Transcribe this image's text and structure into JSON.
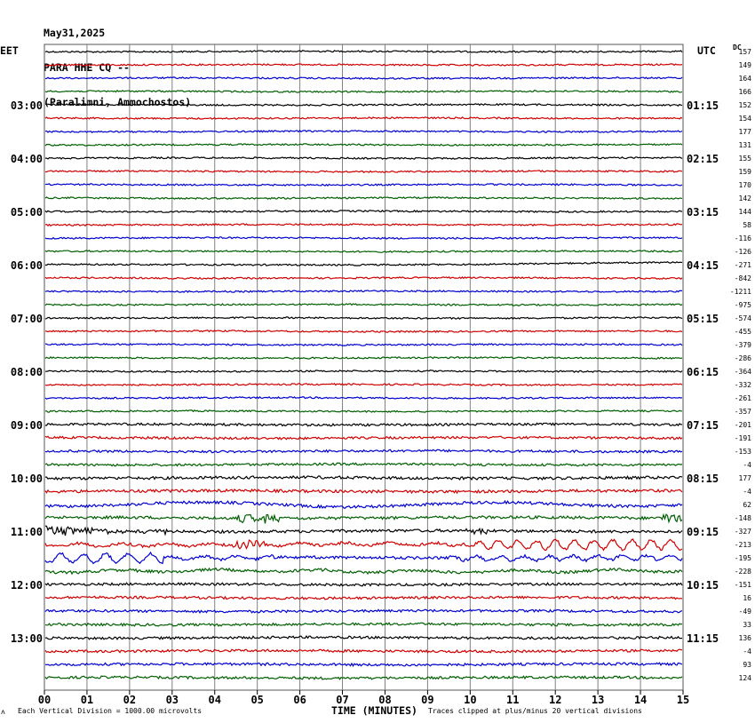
{
  "header": {
    "date": "May31,2025",
    "station": "PARA HHE CQ --",
    "location": "(Paralimni, Ammochostos)"
  },
  "left_tz": "EET",
  "right_tz": "UTC",
  "dc_label": "DC",
  "footer": {
    "scale_note": "Each Vertical Division = 1000.00 microvolts",
    "xlabel": "TIME (MINUTES)",
    "clip_note": "Traces clipped at plus/minus 20 vertical divisions",
    "corner_mark": "ʌ"
  },
  "chart_data": {
    "type": "line",
    "x_range_minutes": [
      0,
      15
    ],
    "x_ticks": [
      "00",
      "01",
      "02",
      "03",
      "04",
      "05",
      "06",
      "07",
      "08",
      "09",
      "10",
      "11",
      "12",
      "13",
      "14",
      "15"
    ],
    "grid": "vertical lines every minute",
    "trace_colors": [
      "#000000",
      "#d00000",
      "#0000d0",
      "#006000"
    ],
    "left_time_labels": [
      "03:00",
      "04:00",
      "05:00",
      "06:00",
      "07:00",
      "08:00",
      "09:00",
      "10:00",
      "11:00",
      "12:00",
      "13:00"
    ],
    "right_time_labels": [
      "01:15",
      "02:15",
      "03:15",
      "04:15",
      "05:15",
      "06:15",
      "07:15",
      "08:15",
      "09:15",
      "10:15",
      "11:15"
    ],
    "dc_offsets": [
      "157",
      "149",
      "164",
      "166",
      "152",
      "154",
      "177",
      "131",
      "155",
      "159",
      "170",
      "142",
      "144",
      "58",
      "-116",
      "-126",
      "-271",
      "-842",
      "-1211",
      "-975",
      "-574",
      "-455",
      "-379",
      "-286",
      "-364",
      "-332",
      "-261",
      "-357",
      "-201",
      "-191",
      "-153",
      "-4",
      "177",
      "-4",
      "62",
      "-148",
      "-327",
      "-213",
      "-195",
      "-228",
      "-151",
      "16",
      "-49",
      "33",
      "136",
      "-4",
      "93",
      "124"
    ]
  }
}
